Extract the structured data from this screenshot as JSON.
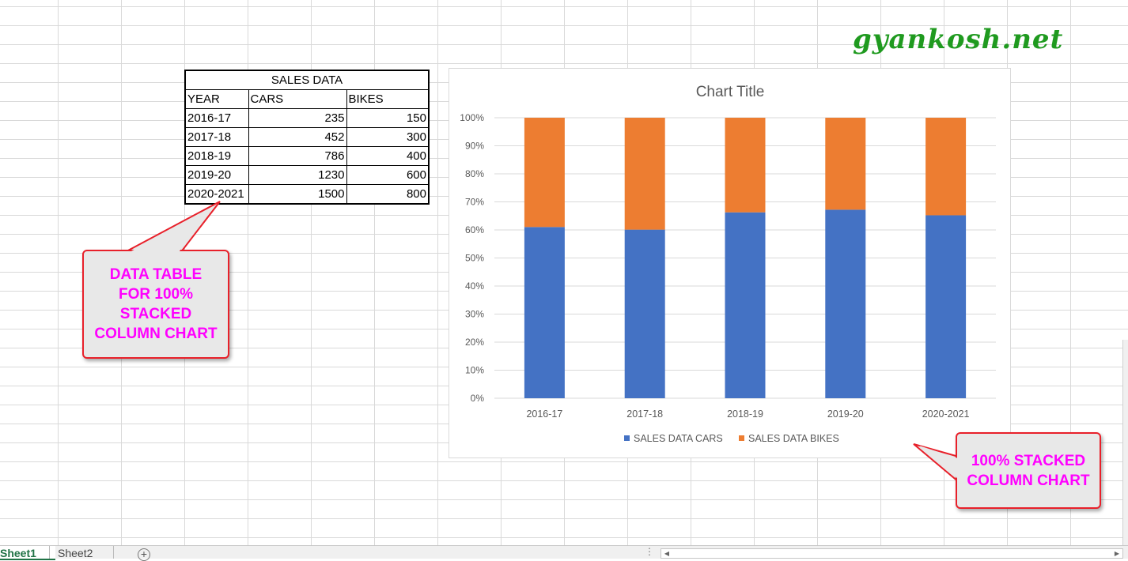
{
  "watermark": "gyankosh.net",
  "table": {
    "title": "SALES DATA",
    "headers": [
      "YEAR",
      "CARS",
      "BIKES"
    ],
    "rows": [
      [
        "2016-17",
        "235",
        "150"
      ],
      [
        "2017-18",
        "452",
        "300"
      ],
      [
        "2018-19",
        "786",
        "400"
      ],
      [
        "2019-20",
        "1230",
        "600"
      ],
      [
        "2020-2021",
        "1500",
        "800"
      ]
    ]
  },
  "callouts": {
    "table_note": [
      "DATA TABLE",
      "FOR 100%",
      "STACKED",
      "COLUMN CHART"
    ],
    "chart_note": [
      "100% STACKED",
      "COLUMN CHART"
    ]
  },
  "colors": {
    "cars": "#4472c4",
    "bikes": "#ed7d31",
    "callout_text": "#ff00ff",
    "callout_border": "#e8202a",
    "watermark": "#1f9a1f"
  },
  "chart_data": {
    "type": "bar",
    "stacked": "100%",
    "title": "Chart Title",
    "categories": [
      "2016-17",
      "2017-18",
      "2018-19",
      "2019-20",
      "2020-2021"
    ],
    "series": [
      {
        "name": "SALES DATA  CARS",
        "values": [
          235,
          452,
          786,
          1230,
          1500
        ]
      },
      {
        "name": "SALES DATA  BIKES",
        "values": [
          150,
          300,
          400,
          600,
          800
        ]
      }
    ],
    "y_ticks": [
      "0%",
      "10%",
      "20%",
      "30%",
      "40%",
      "50%",
      "60%",
      "70%",
      "80%",
      "90%",
      "100%"
    ],
    "ylim": [
      0,
      100
    ],
    "grid": true,
    "legend": "bottom"
  },
  "tabs": {
    "sheet1": "Sheet1",
    "sheet2": "Sheet2",
    "add": "+"
  }
}
